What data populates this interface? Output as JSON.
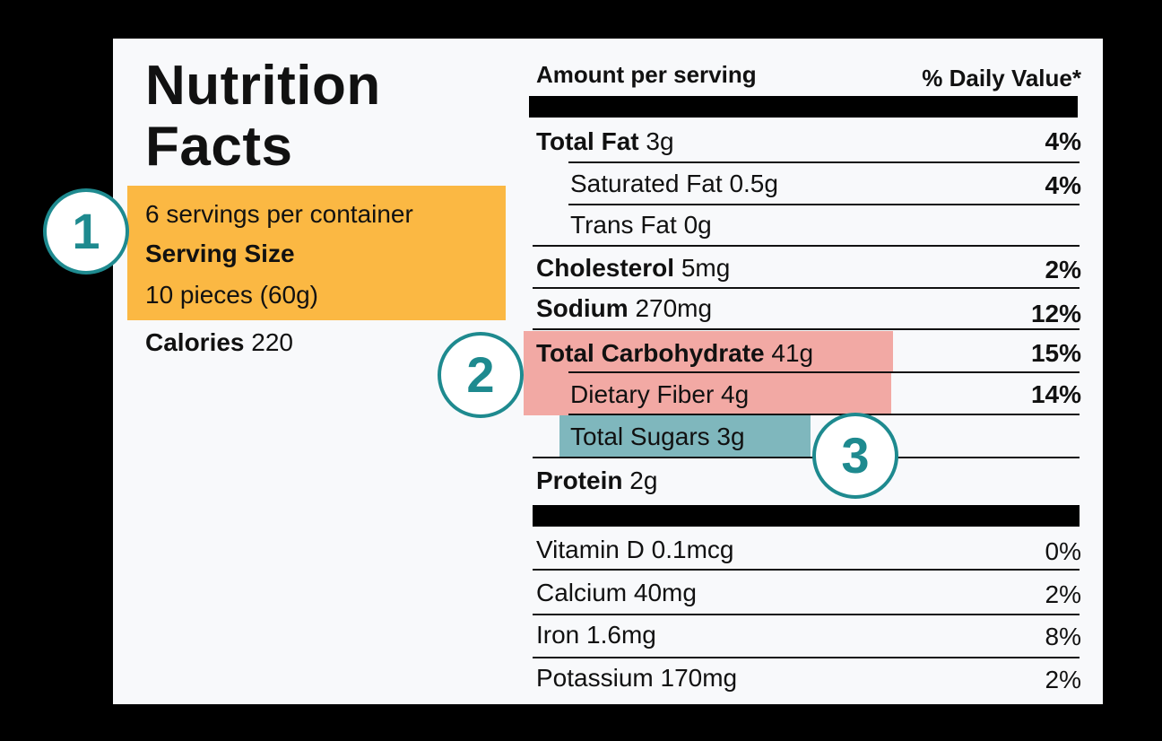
{
  "title": {
    "line1": "Nutrition",
    "line2": "Facts"
  },
  "serving": {
    "per_container": "6 servings per container",
    "size_label": "Serving Size",
    "size_value": "10 pieces (60g)"
  },
  "calories": {
    "label": "Calories",
    "value": "220"
  },
  "header": {
    "amount": "Amount per serving",
    "dv": "% Daily Value*"
  },
  "nutrients": [
    {
      "name": "Total Fat",
      "amount": "3g",
      "dv": "4%"
    },
    {
      "name": "Saturated Fat",
      "amount": "0.5g",
      "dv": "4%"
    },
    {
      "name": "Trans Fat",
      "amount": "0g",
      "dv": ""
    },
    {
      "name": "Cholesterol",
      "amount": "5mg",
      "dv": "2%"
    },
    {
      "name": "Sodium",
      "amount": "270mg",
      "dv": "12%"
    },
    {
      "name": "Total Carbohydrate",
      "amount": "41g",
      "dv": "15%"
    },
    {
      "name": "Dietary Fiber",
      "amount": "4g",
      "dv": "14%"
    },
    {
      "name": "Total Sugars",
      "amount": "3g",
      "dv": ""
    },
    {
      "name": "Protein",
      "amount": "2g",
      "dv": ""
    }
  ],
  "vitamins": [
    {
      "name": "Vitamin D 0.1mcg",
      "dv": "0%"
    },
    {
      "name": "Calcium 40mg",
      "dv": "2%"
    },
    {
      "name": "Iron 1.6mg",
      "dv": "8%"
    },
    {
      "name": "Potassium 170mg",
      "dv": "2%"
    }
  ],
  "badges": [
    "1",
    "2",
    "3"
  ],
  "colors": {
    "serving_highlight": "#fbb843",
    "carb_highlight": "#f2a9a4",
    "sugar_highlight": "#7fb7bd",
    "badge": "#1e8a8f"
  }
}
